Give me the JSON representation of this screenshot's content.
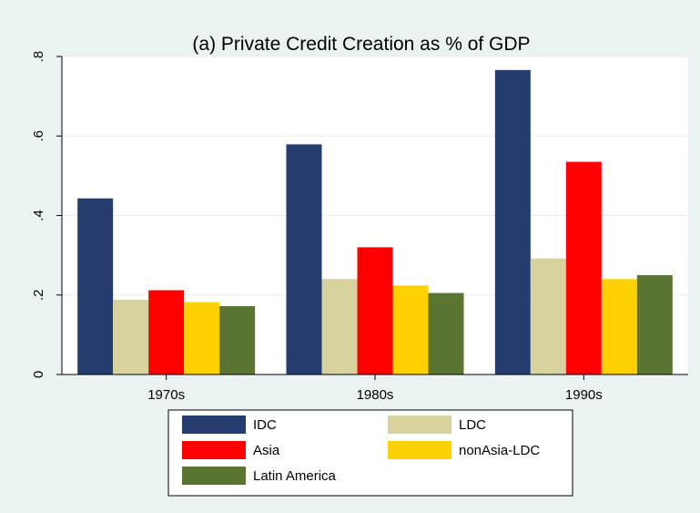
{
  "chart_data": {
    "type": "bar",
    "title": "(a) Private Credit Creation as % of GDP",
    "xlabel": "",
    "ylabel": "",
    "categories": [
      "1970s",
      "1980s",
      "1990s"
    ],
    "ylim": [
      0,
      0.8
    ],
    "yticks": [
      0,
      0.2,
      0.4,
      0.6,
      0.8
    ],
    "ytick_labels": [
      "0",
      ".2",
      ".4",
      ".6",
      ".8"
    ],
    "grid": true,
    "legend_position": "bottom",
    "series": [
      {
        "name": "IDC",
        "color": "#253d6e",
        "values": [
          0.443,
          0.579,
          0.766
        ]
      },
      {
        "name": "LDC",
        "color": "#d7d19e",
        "values": [
          0.188,
          0.24,
          0.292
        ]
      },
      {
        "name": "Asia",
        "color": "#ff0000",
        "values": [
          0.212,
          0.32,
          0.535
        ]
      },
      {
        "name": "nonAsia-LDC",
        "color": "#ffd100",
        "values": [
          0.182,
          0.224,
          0.24
        ]
      },
      {
        "name": "Latin America",
        "color": "#5a7432",
        "values": [
          0.172,
          0.205,
          0.25
        ]
      }
    ]
  }
}
